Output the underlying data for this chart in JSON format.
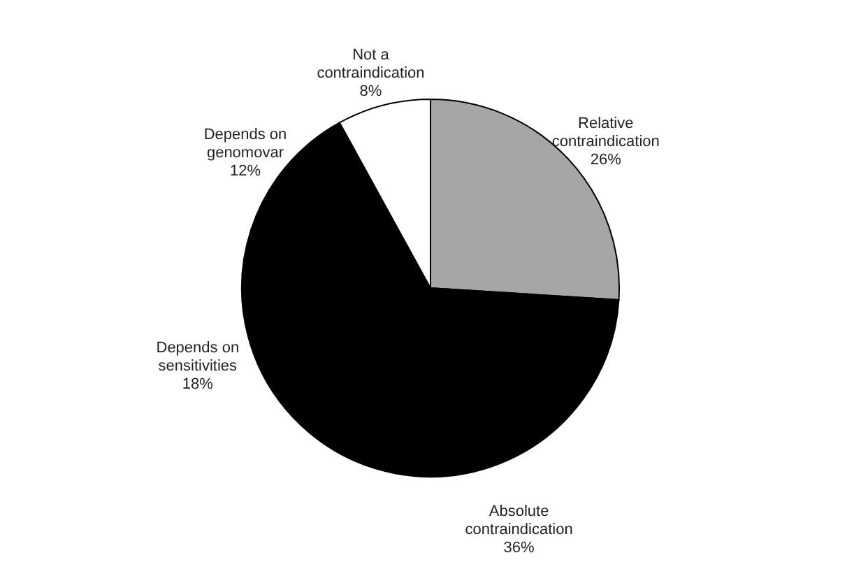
{
  "chart_data": {
    "type": "pie",
    "categories": [
      "Relative contraindication",
      "Absolute contraindication",
      "Depends on sensitivities",
      "Depends on genomovar",
      "Not a contraindication"
    ],
    "values": [
      26,
      36,
      18,
      12,
      8
    ],
    "colors": [
      "#a6a6a6",
      "#000000",
      "#000000",
      "#000000",
      "#ffffff"
    ],
    "value_labels": [
      "26%",
      "36%",
      "18%",
      "12%",
      "8%"
    ]
  }
}
